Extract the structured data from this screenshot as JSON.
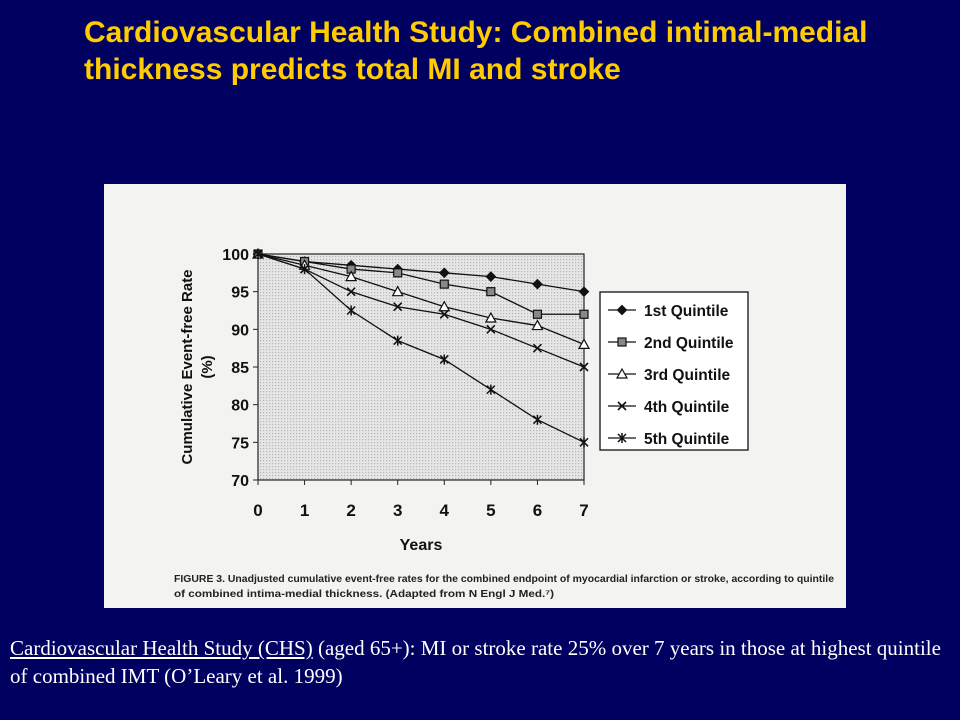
{
  "slide": {
    "title": "Cardiovascular Health Study: Combined intimal-medial thickness predicts total MI and stroke",
    "caption_link": "Cardiovascular Health Study (CHS)",
    "caption_rest": " (aged 65+): MI or stroke rate 25% over 7 years in those at highest quintile of combined IMT (O’Leary et al. 1999)"
  },
  "colors": {
    "background": "#000060",
    "title": "#ffcc00",
    "caption": "#ffffff"
  },
  "chart_data": {
    "type": "line",
    "xlabel": "Years",
    "ylabel": "Cumulative Event-free Rate (%)",
    "ylabel_lines": [
      "Cumulative Event-free Rate",
      "(%)"
    ],
    "x": [
      0,
      1,
      2,
      3,
      4,
      5,
      6,
      7
    ],
    "xlim": [
      0,
      7
    ],
    "ylim": [
      70,
      100
    ],
    "yticks": [
      100,
      95,
      90,
      85,
      80,
      75,
      70
    ],
    "grid": false,
    "legend_position": "right",
    "series": [
      {
        "name": "1st Quintile",
        "marker": "diamond",
        "values": [
          100,
          99,
          98.5,
          98,
          97.5,
          97,
          96,
          95
        ]
      },
      {
        "name": "2nd Quintile",
        "marker": "square",
        "values": [
          100,
          99,
          98,
          97.5,
          96,
          95,
          92,
          92
        ]
      },
      {
        "name": "3rd Quintile",
        "marker": "triangle",
        "values": [
          100,
          98.5,
          97,
          95,
          93,
          91.5,
          90.5,
          88
        ]
      },
      {
        "name": "4th Quintile",
        "marker": "x",
        "values": [
          100,
          98,
          95,
          93,
          92,
          90,
          87.5,
          85
        ]
      },
      {
        "name": "5th Quintile",
        "marker": "asterisk",
        "values": [
          100,
          98,
          92.5,
          88.5,
          86,
          82,
          78,
          75
        ]
      }
    ],
    "figure_caption": "FIGURE 3. Unadjusted cumulative event-free rates for the combined endpoint of myocardial infarction or stroke, according to quintile of combined intima-medial thickness. (Adapted from N Engl J Med.⁷)"
  }
}
